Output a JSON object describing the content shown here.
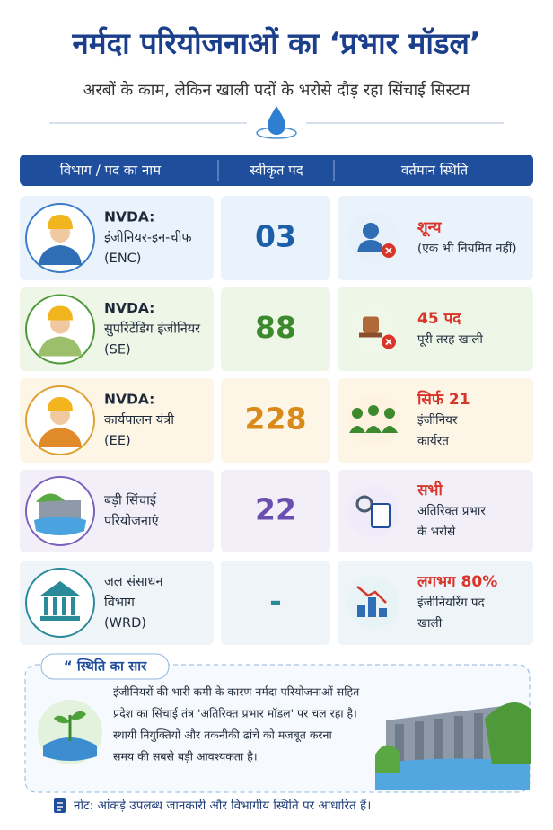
{
  "header": {
    "title": "नर्मदा परियोजनाओं का ‘प्रभार मॉडल’",
    "subtitle": "अरबों के काम, लेकिन खाली पदों के भरोसे दौड़ रहा सिंचाई सिस्टम"
  },
  "table": {
    "columns": [
      "विभाग / पद का नाम",
      "स्वीकृत पद",
      "वर्तमान स्थिति"
    ],
    "rows": [
      {
        "name": [
          "NVDA:",
          "इंजीनियर-इन-चीफ",
          "(ENC)"
        ],
        "count": "03",
        "status": [
          "शून्य",
          "(एक भी नियमित नहीं)"
        ]
      },
      {
        "name": [
          "NVDA:",
          "सुपरिंटेंडिंग इंजीनियर",
          "(SE)"
        ],
        "count": "88",
        "status": [
          "45 पद",
          "पूरी तरह खाली"
        ]
      },
      {
        "name": [
          "NVDA:",
          "कार्यपालन यंत्री",
          "(EE)"
        ],
        "count": "228",
        "status": [
          "सिर्फ 21",
          "इंजीनियर",
          "कार्यरत"
        ]
      },
      {
        "name": [
          "बड़ी सिंचाई",
          "परियोजनाएं"
        ],
        "count": "22",
        "status": [
          "सभी",
          "अतिरिक्त प्रभार",
          "के भरोसे"
        ]
      },
      {
        "name": [
          "जल संसाधन",
          "विभाग",
          "(WRD)"
        ],
        "count": "-",
        "status": [
          "लगभग 80%",
          "इंजीनियरिंग पद",
          "खाली"
        ]
      }
    ]
  },
  "summary": {
    "title": "“ स्थिति का सार",
    "lines": [
      "इंजीनियरों की भारी कमी के कारण नर्मदा परियोजनाओं सहित",
      "प्रदेश का सिंचाई तंत्र 'अतिरिक्त प्रभार मॉडल' पर चल रहा है।",
      "स्थायी नियुक्तियों और तकनीकी ढांचे को मजबूत करना",
      "समय की सबसे बड़ी आवश्यकता है।"
    ]
  },
  "note": "नोट: आंकड़े उपलब्ध जानकारी और विभागीय स्थिति पर आधारित हैं।"
}
